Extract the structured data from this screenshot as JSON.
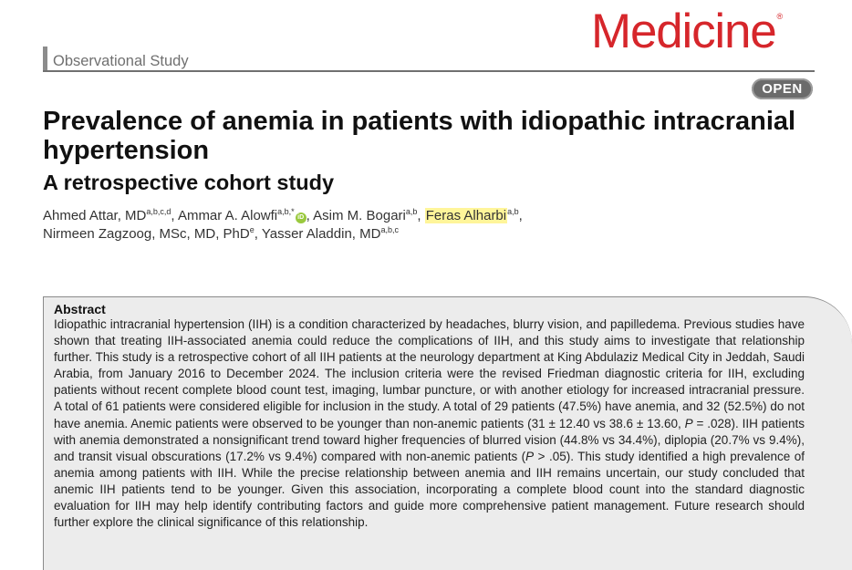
{
  "header": {
    "section": "Observational Study",
    "journal_logo": "Medicine",
    "logo_mark": "®",
    "badge": "OPEN"
  },
  "article": {
    "title": "Prevalence of anemia in patients with idiopathic intracranial hypertension",
    "subtitle": "A retrospective cohort study"
  },
  "authors": [
    {
      "name": "Ahmed Attar, MD",
      "aff": "a,b,c,d",
      "sep": ", "
    },
    {
      "name": "Ammar A. Alowfi",
      "aff": "a,b,*",
      "sep": ", "
    },
    {
      "name": "Asim M. Bogari",
      "aff": "a,b",
      "sep": ", "
    },
    {
      "name": "Feras Alharbi",
      "aff": "a,b",
      "sep": ","
    },
    {
      "name": "Nirmeen Zagzoog, MSc, MD, PhD",
      "aff": "e",
      "sep": ", "
    },
    {
      "name": "Yasser Aladdin, MD",
      "aff": "a,b,c",
      "sep": ""
    }
  ],
  "orcid_label": "iD",
  "abstract": {
    "heading": "Abstract",
    "p1": "Idiopathic intracranial hypertension (IIH) is a condition characterized by headaches, blurry vision, and papilledema. Previous studies have shown that treating IIH-associated anemia could reduce the complications of IIH, and this study aims to investigate that relationship further. This study is a retrospective cohort of all IIH patients at the neurology department at King Abdulaziz Medical City in Jeddah, Saudi Arabia, from January 2016 to December 2024. The inclusion criteria were the revised Friedman diagnostic criteria for IIH, excluding patients without recent complete blood count test, imaging, lumbar puncture, or with another etiology for increased intracranial pressure. A total of 61 patients were considered eligible for inclusion in the study. A total of 29 patients (47.5%) have anemia, and 32 (52.5%) do not have anemia. Anemic patients were observed to be younger than non-anemic patients (31 ± 12.40 vs 38.6 ± 13.60, ",
    "p_italic": "P",
    "p2": " = .028). IIH patients with anemia demonstrated a nonsignificant trend toward higher frequencies of blurred vision (44.8% vs 34.4%), diplopia (20.7% vs 9.4%), and transit visual obscurations (17.2% vs 9.4%) compared with non-anemic patients (",
    "p_italic2": "P",
    "p3": " > .05). This study identified a high prevalence of anemia among patients with IIH. While the precise relationship between anemia and IIH remains uncertain, our study concluded that anemic IIH patients tend to be younger. Given this association, incorporating a complete blood count into the standard diagnostic evaluation for IIH may help identify contributing factors and guide more comprehensive patient management. Future research should further explore the clinical significance of this relationship."
  }
}
